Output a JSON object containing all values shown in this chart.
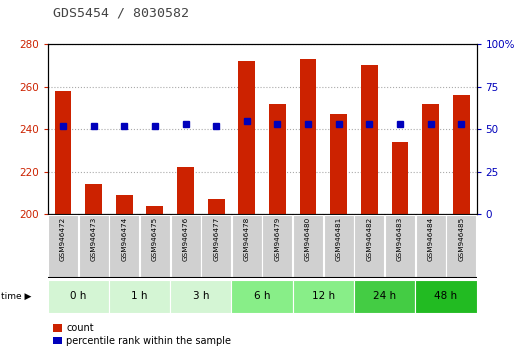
{
  "title": "GDS5454 / 8030582",
  "samples": [
    "GSM946472",
    "GSM946473",
    "GSM946474",
    "GSM946475",
    "GSM946476",
    "GSM946477",
    "GSM946478",
    "GSM946479",
    "GSM946480",
    "GSM946481",
    "GSM946482",
    "GSM946483",
    "GSM946484",
    "GSM946485"
  ],
  "count_values": [
    258,
    214,
    209,
    204,
    222,
    207,
    272,
    252,
    273,
    247,
    270,
    234,
    252,
    256
  ],
  "percentile_values": [
    52,
    52,
    52,
    52,
    53,
    52,
    55,
    53,
    53,
    53,
    53,
    53,
    53,
    53
  ],
  "time_groups": [
    {
      "label": "0 h",
      "indices": [
        0,
        1
      ],
      "color": "#d4f5d4"
    },
    {
      "label": "1 h",
      "indices": [
        2,
        3
      ],
      "color": "#d4f5d4"
    },
    {
      "label": "3 h",
      "indices": [
        4,
        5
      ],
      "color": "#d4f5d4"
    },
    {
      "label": "6 h",
      "indices": [
        6,
        7
      ],
      "color": "#88ee88"
    },
    {
      "label": "12 h",
      "indices": [
        8,
        9
      ],
      "color": "#88ee88"
    },
    {
      "label": "24 h",
      "indices": [
        10,
        11
      ],
      "color": "#44cc44"
    },
    {
      "label": "48 h",
      "indices": [
        12,
        13
      ],
      "color": "#22bb22"
    }
  ],
  "ylim_left": [
    200,
    280
  ],
  "ylim_right": [
    0,
    100
  ],
  "yticks_left": [
    200,
    220,
    240,
    260,
    280
  ],
  "yticks_right": [
    0,
    25,
    50,
    75,
    100
  ],
  "bar_color": "#cc2200",
  "dot_color": "#0000bb",
  "left_tick_color": "#cc2200",
  "right_tick_color": "#0000bb",
  "label_count": "count",
  "label_percentile": "percentile rank within the sample",
  "sample_box_color": "#d0d0d0",
  "fig_width": 5.18,
  "fig_height": 3.54,
  "dpi": 100
}
